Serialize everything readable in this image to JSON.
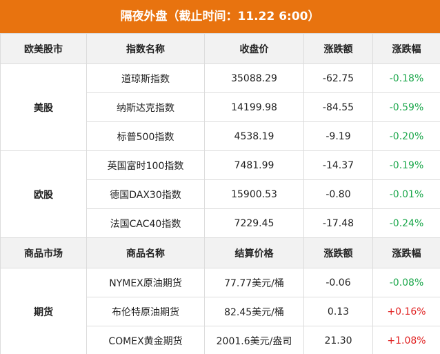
{
  "title": "隔夜外盘（截止时间：11.22 6:00）",
  "sections": [
    {
      "header": [
        "欧美股市",
        "指数名称",
        "收盘价",
        "涨跌额",
        "涨跌幅"
      ],
      "groups": [
        {
          "label": "美股",
          "rows": [
            [
              "道琼斯指数",
              "35088.29",
              "-62.75",
              "-0.18%"
            ],
            [
              "纳斯达克指数",
              "14199.98",
              "-84.55",
              "-0.59%"
            ],
            [
              "标普500指数",
              "4538.19",
              "-9.19",
              "-0.20%"
            ]
          ]
        },
        {
          "label": "欧股",
          "rows": [
            [
              "英国富时100指数",
              "7481.99",
              "-14.37",
              "-0.19%"
            ],
            [
              "德国DAX30指数",
              "15900.53",
              "-0.80",
              "-0.01%"
            ],
            [
              "法国CAC40指数",
              "7229.45",
              "-17.48",
              "-0.24%"
            ]
          ]
        }
      ]
    },
    {
      "header": [
        "商品市场",
        "商品名称",
        "结算价格",
        "涨跌额",
        "涨跌幅"
      ],
      "groups": [
        {
          "label": "期货",
          "rows": [
            [
              "NYMEX原油期货",
              "77.77美元/桶",
              "-0.06",
              "-0.08%"
            ],
            [
              "布伦特原油期货",
              "82.45美元/桶",
              "0.13",
              "+0.16%"
            ],
            [
              "COMEX黄金期货",
              "2001.6美元/盎司",
              "21.30",
              "+1.08%"
            ]
          ]
        }
      ]
    }
  ]
}
